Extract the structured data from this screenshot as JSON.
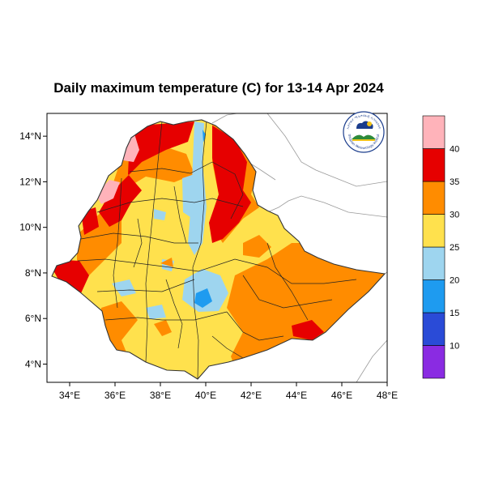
{
  "title": "Daily maximum temperature (C) for 13-14 Apr 2024",
  "map": {
    "lon_range": [
      33,
      48
    ],
    "lat_range": [
      3.2,
      15
    ],
    "x_ticks": [
      {
        "value": 34,
        "label": "34°E"
      },
      {
        "value": 36,
        "label": "36°E"
      },
      {
        "value": 38,
        "label": "38°E"
      },
      {
        "value": 40,
        "label": "40°E"
      },
      {
        "value": 42,
        "label": "42°E"
      },
      {
        "value": 44,
        "label": "44°E"
      },
      {
        "value": 46,
        "label": "46°E"
      },
      {
        "value": 48,
        "label": "48°E"
      }
    ],
    "y_ticks": [
      {
        "value": 14,
        "label": "14°N"
      },
      {
        "value": 12,
        "label": "12°N"
      },
      {
        "value": 10,
        "label": "10°N"
      },
      {
        "value": 8,
        "label": "8°N"
      },
      {
        "value": 6,
        "label": "6°N"
      },
      {
        "value": 4,
        "label": "4°N"
      }
    ]
  },
  "colorbar": {
    "bins": [
      {
        "color": "#8a2be2"
      },
      {
        "color": "#2a4bd7"
      },
      {
        "color": "#1e9bf0"
      },
      {
        "color": "#9ed5ef"
      },
      {
        "color": "#ffe14d"
      },
      {
        "color": "#ff8c00"
      },
      {
        "color": "#e60000"
      },
      {
        "color": "#ffb3ba"
      }
    ],
    "labels": [
      "10",
      "15",
      "20",
      "25",
      "30",
      "35",
      "40"
    ]
  },
  "logo": {
    "text_top": "ኢትዮጵያ ሚቲዎሮሎጂ ኢንስቲትዩት",
    "text_bottom": "Ethiopian Meteorology Institute",
    "colors": {
      "blue": "#1a3c8c",
      "green": "#2e8b3a",
      "yellow": "#f2c418"
    }
  }
}
